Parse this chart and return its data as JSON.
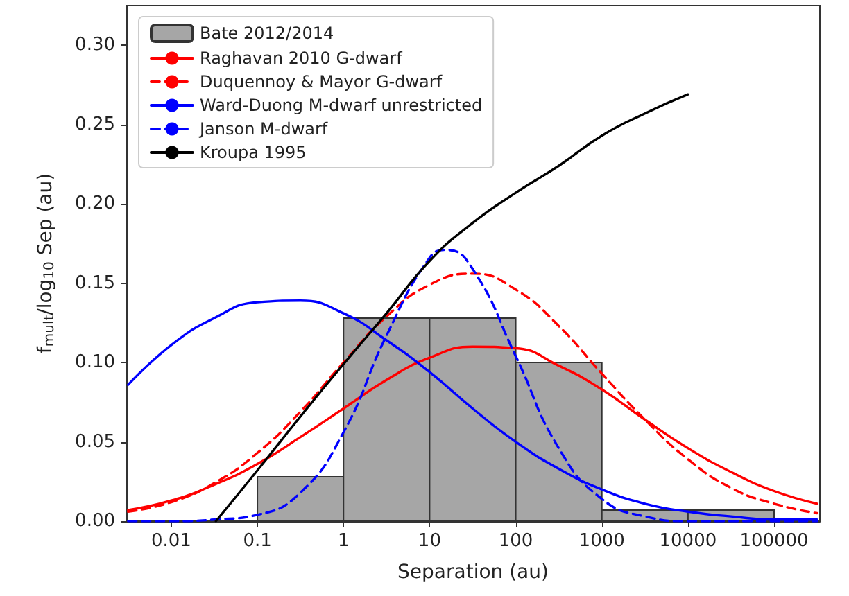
{
  "chart_data": {
    "type": "line",
    "xlabel": "Separation (au)",
    "ylabel": "f$_{mult}$/log$_{10}$ Sep (au)",
    "log": "x",
    "grid": false,
    "legend": "top left",
    "marker": "none",
    "xlim": [
      0.003,
      340000
    ],
    "xticks": [
      0.01,
      0.1,
      1,
      10,
      100,
      1000,
      10000,
      100000
    ],
    "ylim": [
      0,
      0.325
    ],
    "yticks": [
      {
        "value": 0,
        "label": "0.00"
      },
      {
        "value": 0.05,
        "label": "0.05"
      },
      {
        "value": 0.1,
        "label": "0.10"
      },
      {
        "value": 0.15,
        "label": "0.15"
      },
      {
        "value": 0.2,
        "label": "0.20"
      },
      {
        "value": 0.25,
        "label": "0.25"
      },
      {
        "value": 0.3,
        "label": "0.30"
      }
    ],
    "series": [
      {
        "type": "histogram",
        "name": "Bate 2012/2014",
        "color": "#a6a6a6",
        "bins": [
          0.1,
          1,
          10,
          100,
          1000,
          10000,
          100000
        ],
        "values": [
          0.028,
          0.128,
          0.128,
          0.1,
          0.007,
          0.007
        ]
      },
      {
        "name": "Raghavan 2010 G-dwarf",
        "color": "#ff0000",
        "line_style": "solid",
        "x": [
          0.00316,
          0.01,
          0.0316,
          0.1,
          0.316,
          1,
          3.16,
          10,
          31.6,
          100,
          316,
          1000,
          3162,
          10000,
          31623,
          100000,
          316228
        ],
        "values": [
          0.007,
          0.013,
          0.023,
          0.036,
          0.053,
          0.071,
          0.089,
          0.103,
          0.11,
          0.109,
          0.098,
          0.083,
          0.064,
          0.046,
          0.031,
          0.019,
          0.011
        ]
      },
      {
        "name": "Duquennoy & Mayor G-dwarf",
        "color": "#ff0000",
        "line_style": "dashed",
        "x": [
          0.00316,
          0.01,
          0.0316,
          0.1,
          0.316,
          1,
          3.16,
          10,
          31.6,
          100,
          316,
          1000,
          3162,
          10000,
          31623,
          100000,
          316228
        ],
        "values": [
          0.006,
          0.012,
          0.024,
          0.043,
          0.069,
          0.1,
          0.129,
          0.149,
          0.156,
          0.146,
          0.123,
          0.093,
          0.064,
          0.039,
          0.021,
          0.011,
          0.005
        ]
      },
      {
        "name": "Ward-Duong M-dwarf unrestricted",
        "color": "#0000ff",
        "line_style": "solid",
        "x": [
          0.00316,
          0.01,
          0.0316,
          0.1,
          0.316,
          1,
          3.16,
          10,
          31.6,
          100,
          316,
          1000,
          3162,
          10000,
          31623,
          100000,
          316228
        ],
        "values": [
          0.086,
          0.111,
          0.128,
          0.138,
          0.139,
          0.131,
          0.114,
          0.094,
          0.071,
          0.05,
          0.033,
          0.02,
          0.011,
          0.006,
          0.003,
          0.001,
          0.001
        ]
      },
      {
        "name": "Janson M-dwarf",
        "color": "#0000ff",
        "line_style": "dashed",
        "x": [
          0.00316,
          0.01,
          0.0316,
          0.1,
          0.316,
          1,
          3.16,
          10,
          15.8,
          31.6,
          100,
          316,
          1000,
          3162,
          10000,
          31623,
          100000,
          316228
        ],
        "values": [
          0,
          0,
          0.001,
          0.004,
          0.018,
          0.056,
          0.117,
          0.166,
          0.171,
          0.159,
          0.104,
          0.046,
          0.014,
          0.003,
          0,
          0,
          0,
          0
        ]
      },
      {
        "name": "Kroupa 1995",
        "color": "#000000",
        "line_style": "solid",
        "x": [
          0.033,
          0.1,
          0.316,
          1,
          3.16,
          10,
          31.6,
          100,
          316,
          1000,
          3162,
          10000
        ],
        "values": [
          0,
          0.032,
          0.066,
          0.099,
          0.131,
          0.164,
          0.188,
          0.207,
          0.224,
          0.243,
          0.257,
          0.269
        ]
      }
    ]
  }
}
